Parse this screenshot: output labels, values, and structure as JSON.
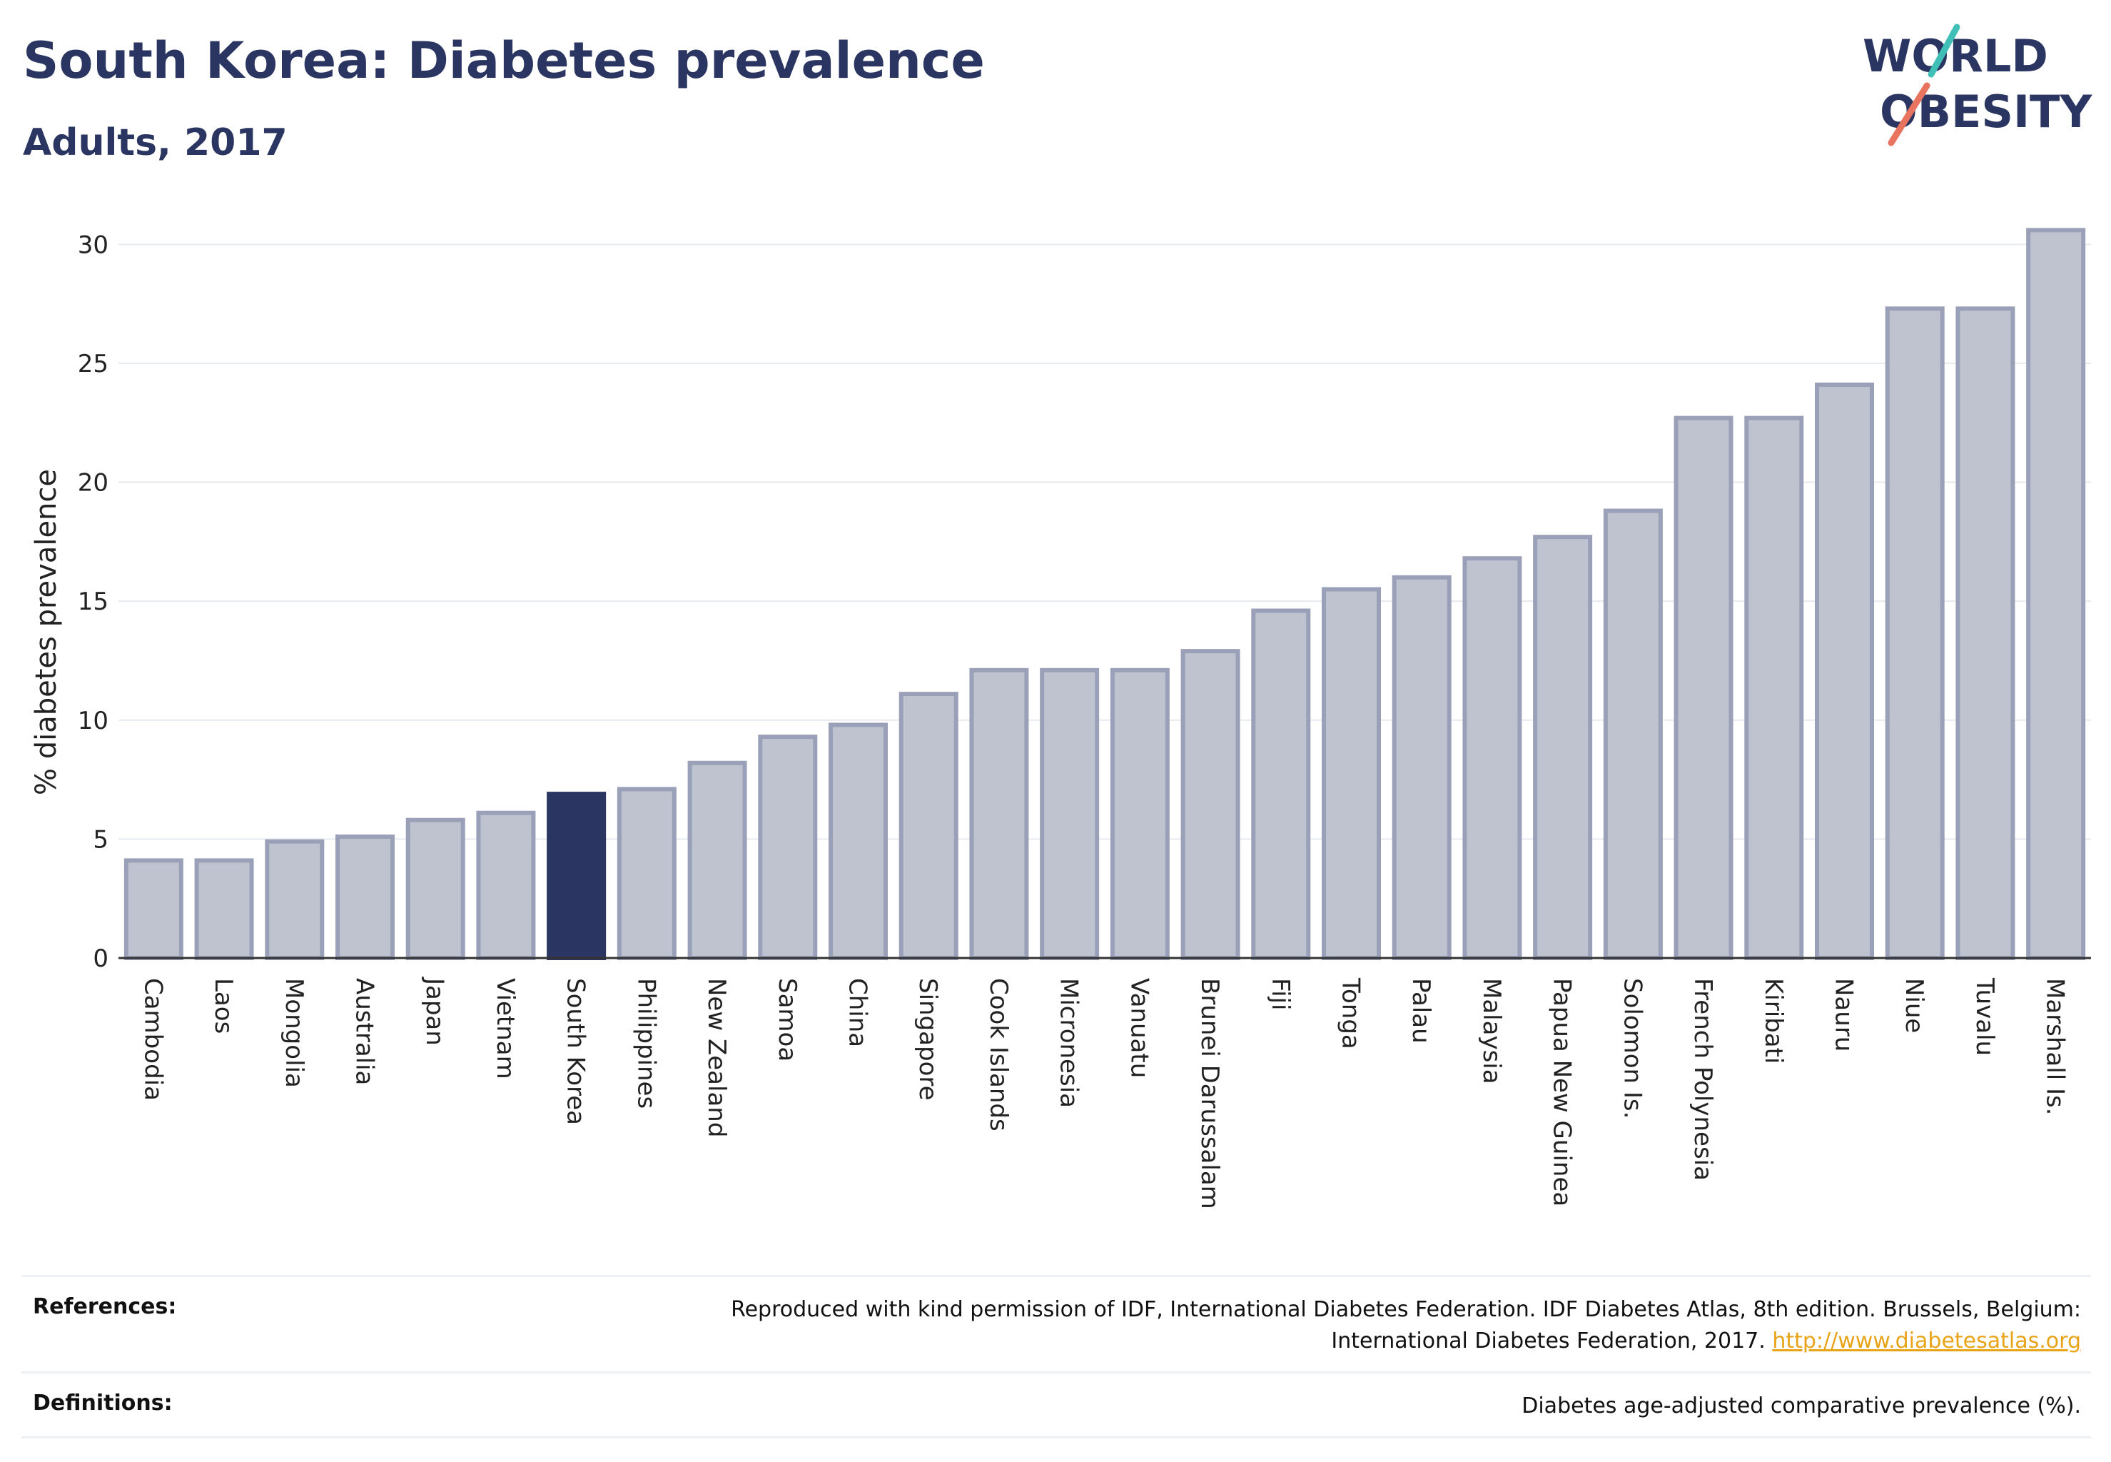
{
  "header": {
    "title": "South Korea: Diabetes prevalence",
    "subtitle": "Adults, 2017"
  },
  "logo": {
    "line1": "WORLD",
    "line2": "OBESITY"
  },
  "colors": {
    "highlight": "#2b3561",
    "bar_fill": "#bfc3d0",
    "bar_stroke": "#9aa0b8",
    "title": "#2b3561",
    "link": "#e8a317"
  },
  "chart_data": {
    "type": "bar",
    "title": "",
    "xlabel": "",
    "ylabel": "% diabetes prevalence",
    "ylim": [
      0,
      31
    ],
    "yticks": [
      0,
      5,
      10,
      15,
      20,
      25,
      30
    ],
    "grid": true,
    "highlight": "South Korea",
    "categories": [
      "Cambodia",
      "Laos",
      "Mongolia",
      "Australia",
      "Japan",
      "Vietnam",
      "South Korea",
      "Philippines",
      "New Zealand",
      "Samoa",
      "China",
      "Singapore",
      "Cook Islands",
      "Micronesia",
      "Vanuatu",
      "Brunei Darussalam",
      "Fiji",
      "Tonga",
      "Palau",
      "Malaysia",
      "Papua New Guinea",
      "Solomon Is.",
      "French Polynesia",
      "Kiribati",
      "Nauru",
      "Niue",
      "Tuvalu",
      "Marshall Is."
    ],
    "values": [
      4.1,
      4.1,
      4.9,
      5.1,
      5.8,
      6.1,
      6.9,
      7.1,
      8.2,
      9.3,
      9.8,
      11.1,
      12.1,
      12.1,
      12.1,
      12.9,
      14.6,
      15.5,
      16.0,
      16.8,
      17.7,
      18.8,
      22.7,
      22.7,
      24.1,
      27.3,
      27.3,
      30.6
    ]
  },
  "footer": {
    "references_label": "References:",
    "references_text_1": "Reproduced with kind permission of IDF, International Diabetes Federation. IDF Diabetes Atlas, 8th edition. Brussels, Belgium:",
    "references_text_2": "International Diabetes Federation, 2017.",
    "references_link": "http://www.diabetesatlas.org",
    "definitions_label": "Definitions:",
    "definitions_text": "Diabetes age-adjusted comparative prevalence (%)."
  }
}
